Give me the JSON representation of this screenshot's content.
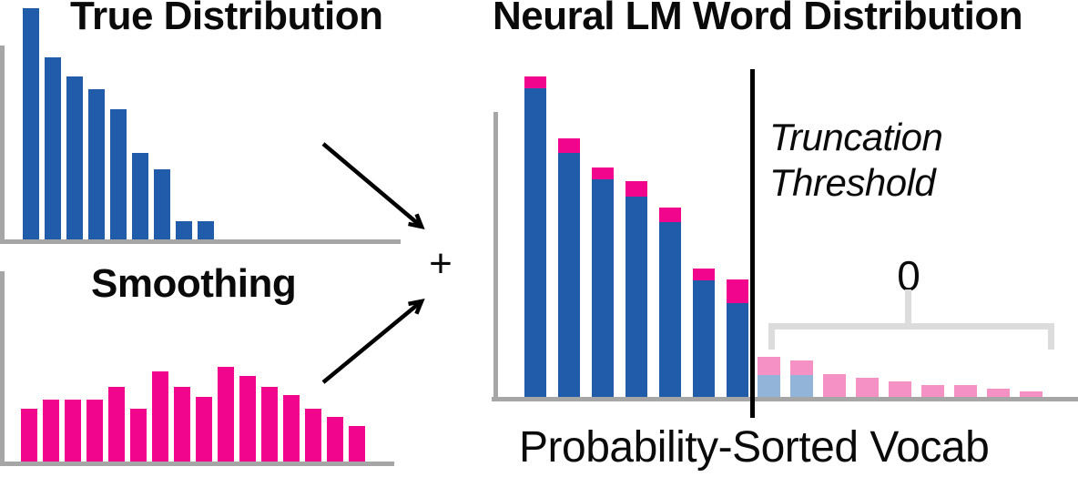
{
  "figure": {
    "plus_operator": "+"
  },
  "colors": {
    "bar_blue": "#215CAA",
    "bar_magenta": "#F0058C",
    "faded_blue": "#93B4D9",
    "faded_pink": "#F691C6",
    "axis_gray": "#A6A6A6",
    "bracket_gray": "#DCDCDC",
    "arrow_black": "#000000"
  },
  "chart_data": [
    {
      "id": "true_distribution",
      "type": "bar",
      "title": "True Distribution",
      "series_color": "bar_blue",
      "units": "relative-height-px",
      "values": [
        254,
        200,
        179,
        165,
        143,
        95,
        77,
        20,
        20
      ],
      "axis_ticks_shown": false
    },
    {
      "id": "smoothing",
      "type": "bar",
      "title": "Smoothing",
      "series_color": "bar_magenta",
      "units": "relative-height-px",
      "values": [
        58,
        68,
        68,
        68,
        82,
        58,
        99,
        82,
        71,
        104,
        94,
        82,
        73,
        58,
        49,
        39
      ],
      "axis_ticks_shown": false
    },
    {
      "id": "neural_lm_word_distribution",
      "type": "stacked-bar",
      "title": "Neural LM Word Distribution",
      "xlabel": "Probability-Sorted Vocab",
      "units": "relative-height-px",
      "kept_bars": {
        "blue_base": [
          339,
          268,
          239,
          220,
          192,
          128,
          103
        ],
        "magenta_cap": [
          13,
          16,
          13,
          17,
          16,
          13,
          26
        ]
      },
      "truncated_bars": {
        "faded_blue_base": [
          24,
          24,
          0,
          0,
          0,
          0,
          0,
          0,
          0
        ],
        "faded_pink_cap": [
          20,
          16,
          25,
          21,
          17,
          13,
          13,
          9,
          6
        ]
      },
      "annotations": {
        "threshold_label": [
          "Truncation",
          "Threshold"
        ],
        "truncated_mass_label": "0"
      }
    }
  ]
}
